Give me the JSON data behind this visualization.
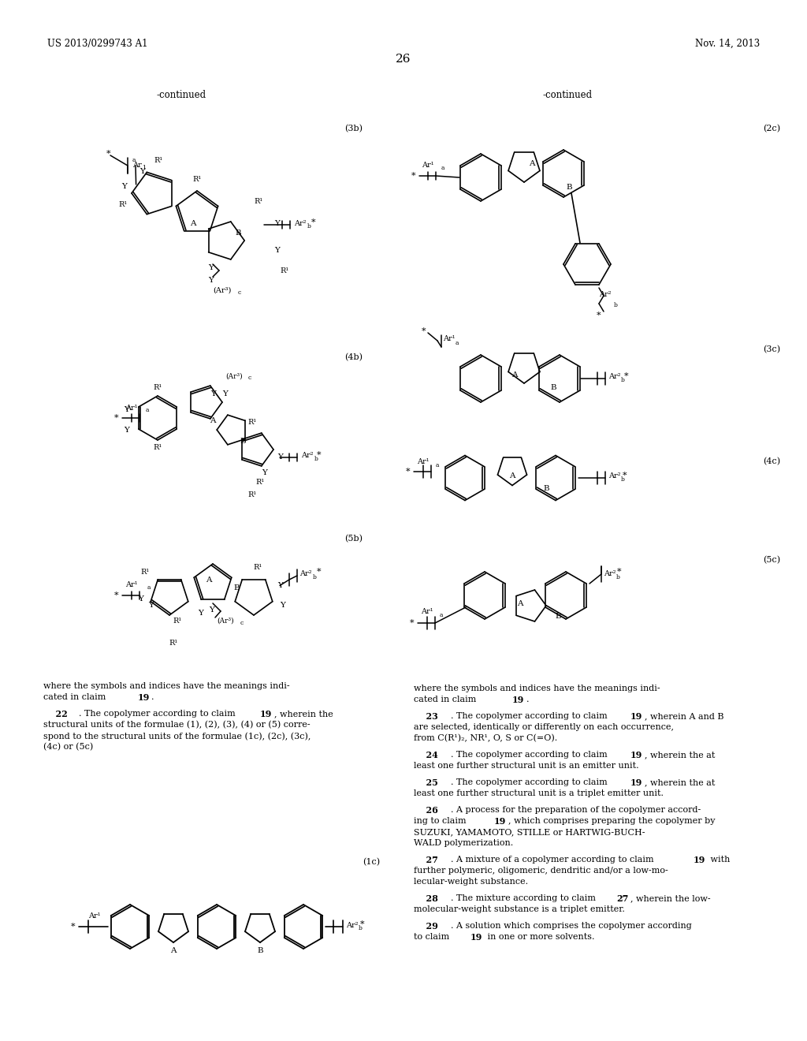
{
  "background_color": "#ffffff",
  "header_left": "US 2013/0299743 A1",
  "header_right": "Nov. 14, 2013",
  "page_number": "26"
}
